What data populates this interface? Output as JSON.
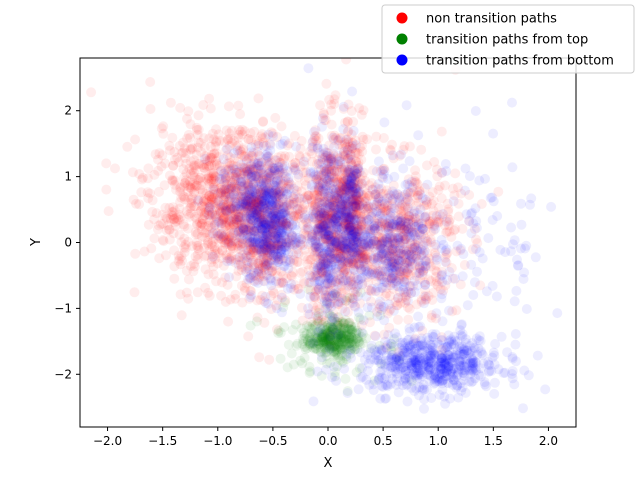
{
  "chart_data": {
    "type": "scatter",
    "title": "",
    "xlabel": "X",
    "ylabel": "Y",
    "xlim": [
      -2.25,
      2.25
    ],
    "ylim": [
      -2.8,
      2.8
    ],
    "xticks": [
      -2.0,
      -1.5,
      -1.0,
      -0.5,
      0.0,
      0.5,
      1.0,
      1.5,
      2.0
    ],
    "xtick_labels": [
      "−2.0",
      "−1.5",
      "−1.0",
      "−0.5",
      "0.0",
      "0.5",
      "1.0",
      "1.5",
      "2.0"
    ],
    "yticks": [
      2,
      1,
      0,
      -1,
      -2
    ],
    "ytick_labels": [
      "2",
      "1",
      "0",
      "−1",
      "−2"
    ],
    "grid": false,
    "legend_position": "top-right",
    "series": [
      {
        "name": "non transition paths",
        "color": "#ff0000",
        "clusters": [
          {
            "cx": -0.95,
            "cy": 0.55,
            "sx": 0.32,
            "sy": 0.55,
            "n": 700
          },
          {
            "cx": -0.55,
            "cy": 0.25,
            "sx": 0.22,
            "sy": 0.6,
            "n": 450
          },
          {
            "cx": 0.02,
            "cy": 0.3,
            "sx": 0.12,
            "sy": 0.75,
            "n": 450
          },
          {
            "cx": 0.22,
            "cy": 0.55,
            "sx": 0.07,
            "sy": 0.6,
            "n": 250
          },
          {
            "cx": 0.62,
            "cy": 0.05,
            "sx": 0.28,
            "sy": 0.6,
            "n": 600
          },
          {
            "cx": -1.1,
            "cy": 0.9,
            "sx": 0.5,
            "sy": 0.6,
            "n": 150
          }
        ]
      },
      {
        "name": "transition paths from top",
        "color": "#008000",
        "clusters": [
          {
            "cx": 0.05,
            "cy": -1.45,
            "sx": 0.12,
            "sy": 0.13,
            "n": 300
          },
          {
            "cx": 0.05,
            "cy": -1.5,
            "sx": 0.3,
            "sy": 0.35,
            "n": 80
          }
        ]
      },
      {
        "name": "transition paths from bottom",
        "color": "#0000ff",
        "clusters": [
          {
            "cx": -0.65,
            "cy": 0.55,
            "sx": 0.18,
            "sy": 0.45,
            "n": 350
          },
          {
            "cx": -0.5,
            "cy": 0.15,
            "sx": 0.12,
            "sy": 0.45,
            "n": 250
          },
          {
            "cx": 0.0,
            "cy": 0.15,
            "sx": 0.09,
            "sy": 0.7,
            "n": 350
          },
          {
            "cx": 0.2,
            "cy": 0.5,
            "sx": 0.05,
            "sy": 0.5,
            "n": 150
          },
          {
            "cx": 0.55,
            "cy": 0.0,
            "sx": 0.2,
            "sy": 0.5,
            "n": 350
          },
          {
            "cx": 0.95,
            "cy": -1.85,
            "sx": 0.32,
            "sy": 0.22,
            "n": 550
          },
          {
            "cx": 1.1,
            "cy": 0.0,
            "sx": 0.55,
            "sy": 0.9,
            "n": 140
          }
        ]
      }
    ]
  }
}
